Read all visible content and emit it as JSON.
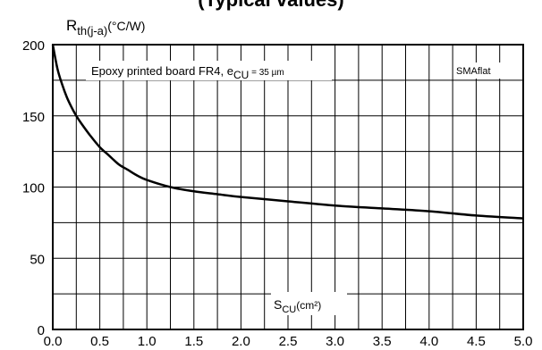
{
  "chart_data": {
    "type": "line",
    "title": "(Typical values)",
    "ylabel_main": "R",
    "ylabel_sub": "th(j-a)",
    "ylabel_unit": "(°C/W)",
    "xlabel_main": "S",
    "xlabel_sub": "CU",
    "xlabel_unit": "(cm²)",
    "annotation_text": "Epoxy printed board FR4, e",
    "annotation_sub": "CU",
    "annotation_value": " = 35 µm",
    "package_label": "SMAflat",
    "xlim": [
      0,
      5
    ],
    "ylim": [
      0,
      200
    ],
    "x_ticks": [
      "0.0",
      "0.5",
      "1.0",
      "1.5",
      "2.0",
      "2.5",
      "3.0",
      "3.5",
      "4.0",
      "4.5",
      "5.0"
    ],
    "y_ticks": [
      "0",
      "50",
      "100",
      "150",
      "200"
    ],
    "grid": true,
    "series": [
      {
        "x": [
          0.0,
          0.05,
          0.1,
          0.15,
          0.2,
          0.25,
          0.3,
          0.4,
          0.5,
          0.6,
          0.7,
          0.8,
          0.9,
          1.0,
          1.25,
          1.5,
          1.75,
          2.0,
          2.5,
          3.0,
          3.5,
          4.0,
          4.5,
          5.0
        ],
        "y": [
          200,
          183,
          172,
          163,
          156,
          150,
          145,
          136,
          128,
          122,
          116,
          112,
          108,
          105,
          100,
          97,
          95,
          93,
          90,
          87,
          85,
          83,
          80,
          78
        ]
      }
    ]
  }
}
